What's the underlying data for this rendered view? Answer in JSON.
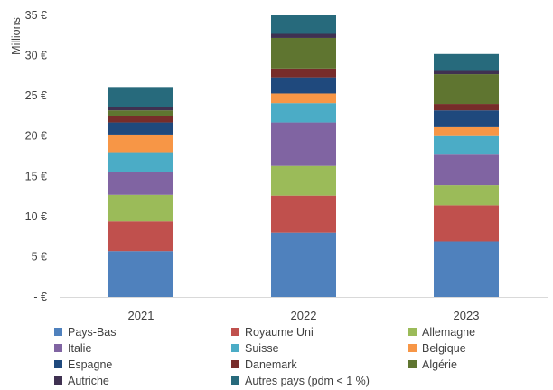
{
  "chart_data": {
    "type": "bar",
    "stacked": true,
    "ylabel": "Millions",
    "ylim": [
      0,
      35
    ],
    "yticks": [
      0,
      5,
      10,
      15,
      20,
      25,
      30,
      35
    ],
    "ytick_labels": [
      "-  €",
      "5 €",
      "10 €",
      "15 €",
      "20 €",
      "25 €",
      "30 €",
      "35 €"
    ],
    "categories": [
      "2021",
      "2022",
      "2023"
    ],
    "grid": false,
    "legend_position": "bottom",
    "series": [
      {
        "name": "Pays-Bas",
        "color": "#4F81BD",
        "values": [
          5.7,
          8.0,
          6.9
        ]
      },
      {
        "name": "Royaume Uni",
        "color": "#C0504D",
        "values": [
          3.7,
          4.6,
          4.5
        ]
      },
      {
        "name": "Allemagne",
        "color": "#9BBB59",
        "values": [
          3.3,
          3.7,
          2.5
        ]
      },
      {
        "name": "Italie",
        "color": "#8064A2",
        "values": [
          2.8,
          5.4,
          3.8
        ]
      },
      {
        "name": "Suisse",
        "color": "#4BACC6",
        "values": [
          2.5,
          2.4,
          2.3
        ]
      },
      {
        "name": "Belgique",
        "color": "#F79646",
        "values": [
          2.2,
          1.2,
          1.1
        ]
      },
      {
        "name": "Espagne",
        "color": "#1F497D",
        "values": [
          1.5,
          2.0,
          2.1
        ]
      },
      {
        "name": "Danemark",
        "color": "#772C2A",
        "values": [
          0.8,
          1.1,
          0.8
        ]
      },
      {
        "name": "Algérie",
        "color": "#5F7530",
        "values": [
          0.7,
          3.8,
          3.7
        ]
      },
      {
        "name": "Autriche",
        "color": "#3F3151",
        "values": [
          0.4,
          0.5,
          0.4
        ]
      },
      {
        "name": "Autres pays (pdm < 1 %)",
        "color": "#276A7C",
        "values": [
          2.5,
          2.3,
          2.1
        ]
      }
    ]
  }
}
